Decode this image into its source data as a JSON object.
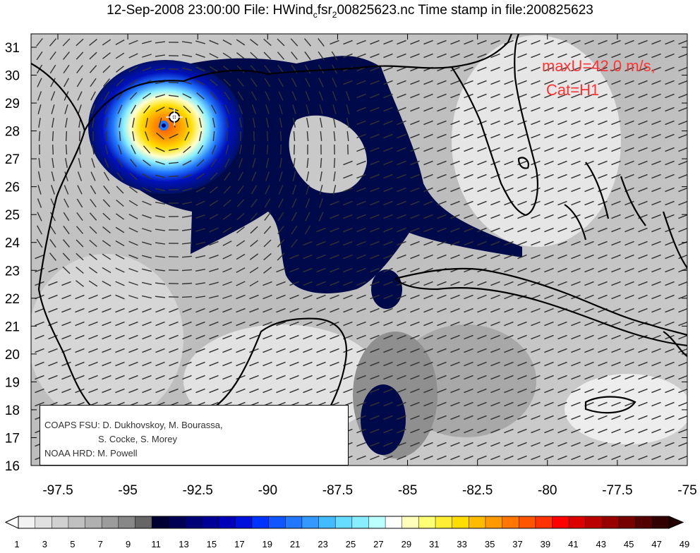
{
  "title": {
    "prefix": "12-Sep-2008 23:00:00 File: HWind",
    "subscript1": "c",
    "middle": "fsr",
    "subscript2": "2",
    "suffix": "00825623.nc Time stamp in file:200825623"
  },
  "annotation": {
    "line1": "maxU=42.0 m/s,",
    "line2": "Cat=H1",
    "color": "#ff3333"
  },
  "credits": {
    "line1": "COAPS FSU: D. Dukhovskoy, M. Bourassa,",
    "line2": "S. Cocke, S. Morey",
    "line3": "NOAA HRD:  M. Powell"
  },
  "map": {
    "lon_range": [
      -98.5,
      -75
    ],
    "lat_range": [
      16,
      31.5
    ],
    "x_ticks": [
      "-97.5",
      "-95",
      "-92.5",
      "-90",
      "-87.5",
      "-85",
      "-82.5",
      "-80",
      "-77.5",
      "-75"
    ],
    "y_ticks": [
      "31",
      "30",
      "29",
      "28",
      "27",
      "26",
      "25",
      "24",
      "23",
      "22",
      "21",
      "20",
      "19",
      "18",
      "17",
      "16"
    ],
    "storm_center": {
      "lon": -93.3,
      "lat": 28.5
    }
  },
  "colorbar": {
    "labels": [
      "1",
      "3",
      "5",
      "7",
      "9",
      "11",
      "13",
      "15",
      "17",
      "19",
      "21",
      "23",
      "25",
      "27",
      "29",
      "31",
      "33",
      "35",
      "37",
      "39",
      "41",
      "43",
      "45",
      "47",
      "49"
    ],
    "colors": [
      "#f2f2f2",
      "#e0e0e0",
      "#d0d0d0",
      "#c0c0c0",
      "#b0b0b0",
      "#9c9c9c",
      "#888888",
      "#666666",
      "#000033",
      "#000055",
      "#000077",
      "#000099",
      "#0000bb",
      "#0011dd",
      "#0033ff",
      "#1155ff",
      "#2277ff",
      "#3399ff",
      "#44bbff",
      "#66ddff",
      "#88eeff",
      "#bbffff",
      "#ffffff",
      "#ffffbb",
      "#ffff77",
      "#ffee33",
      "#ffdd00",
      "#ffbb00",
      "#ff9900",
      "#ff7700",
      "#ff5500",
      "#ff3300",
      "#ff0000",
      "#dd0000",
      "#bb0000",
      "#990000",
      "#770000",
      "#550000",
      "#330000"
    ]
  }
}
